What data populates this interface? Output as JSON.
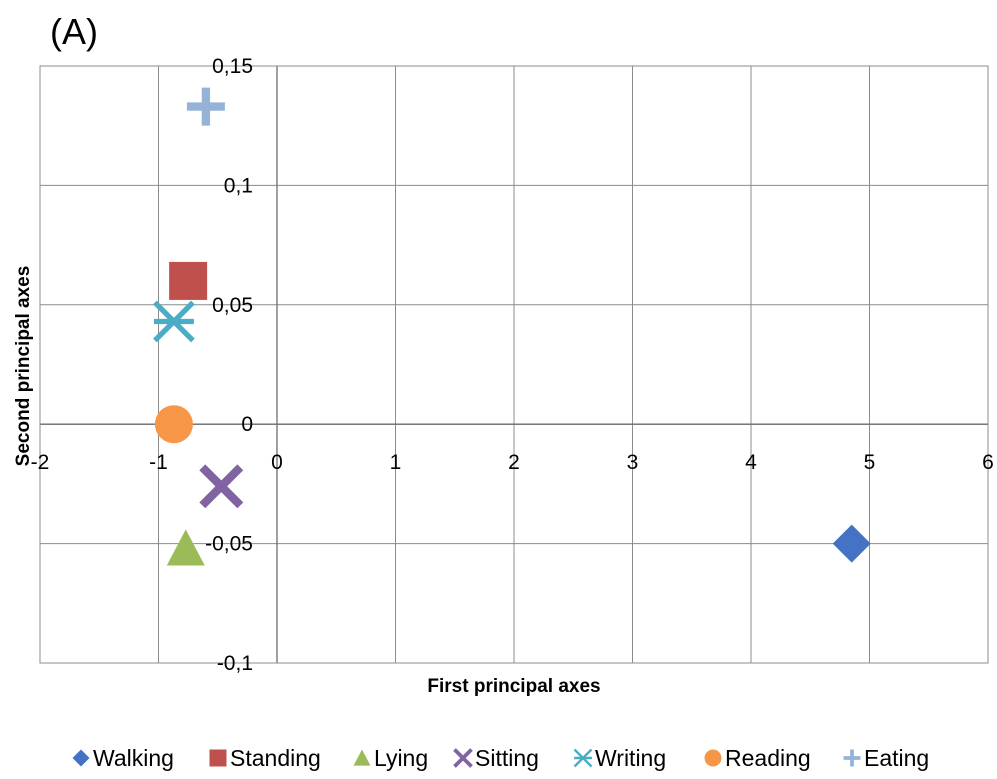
{
  "chart_data": {
    "type": "scatter",
    "panel_label": "(A)",
    "title": "",
    "xlabel": "First principal  axes",
    "ylabel": "Second principal  axes",
    "xlim": [
      -2,
      6
    ],
    "ylim": [
      -0.1,
      0.15
    ],
    "x_ticks": [
      -2,
      -1,
      0,
      1,
      2,
      3,
      4,
      5,
      6
    ],
    "x_tick_labels": [
      "-2",
      "-1",
      "0",
      "1",
      "2",
      "3",
      "4",
      "5",
      "6"
    ],
    "y_ticks": [
      -0.1,
      -0.05,
      0,
      0.05,
      0.1,
      0.15
    ],
    "y_tick_labels": [
      "-0,1",
      "-0,05",
      "0",
      "0,05",
      "0,1",
      "0,15"
    ],
    "grid": true,
    "legend_position": "bottom",
    "series": [
      {
        "name": "Walking",
        "marker": "diamond",
        "color": "#4472C4",
        "x": 4.85,
        "y": -0.05
      },
      {
        "name": "Standing",
        "marker": "square",
        "color": "#C0504D",
        "x": -0.75,
        "y": 0.06
      },
      {
        "name": "Lying",
        "marker": "triangle",
        "color": "#9BBB59",
        "x": -0.77,
        "y": -0.052
      },
      {
        "name": "Sitting",
        "marker": "x",
        "color": "#8064A2",
        "x": -0.47,
        "y": -0.026
      },
      {
        "name": "Writing",
        "marker": "asterisk",
        "color": "#4BACC6",
        "x": -0.87,
        "y": 0.043
      },
      {
        "name": "Reading",
        "marker": "circle",
        "color": "#F79646",
        "x": -0.87,
        "y": 0.0
      },
      {
        "name": "Eating",
        "marker": "plus",
        "color": "#95B3D7",
        "x": -0.6,
        "y": 0.133
      }
    ]
  }
}
